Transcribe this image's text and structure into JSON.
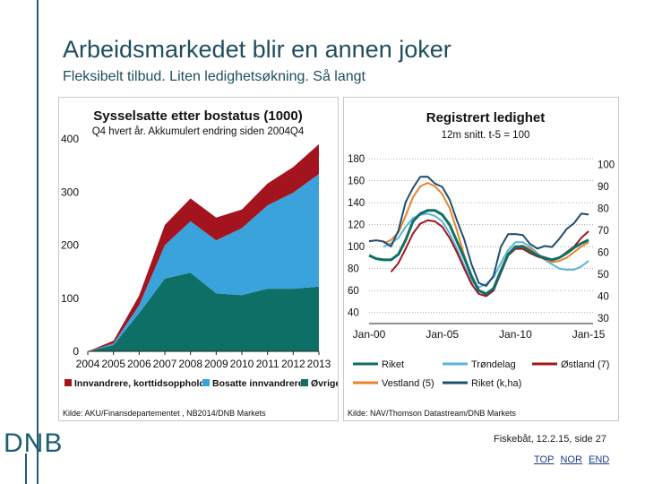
{
  "slide": {
    "title": "Arbeidsmarkedet blir en annen joker",
    "subtitle": "Fleksibelt tilbud. Liten ledighetsøkning. Så langt",
    "logo": "DNB",
    "footer": "Fiskebåt, 12.2.15, side 27",
    "nav": [
      "TOP",
      "NOR",
      "END"
    ]
  },
  "colors": {
    "accent": "#1f5e6e",
    "innvandrere": "#a3141e",
    "bosatte": "#3aa3dc",
    "ovrige": "#0e6f66",
    "riket": "#0e6f66",
    "trondelag": "#5ab4d8",
    "ostland": "#a3141e",
    "vestland": "#e8832a",
    "riket_kha": "#1f4e6e"
  },
  "chart_data": [
    {
      "type": "area",
      "title": "Sysselsatte  etter bostatus (1000)",
      "subtitle": "Q4 hvert år. Akkumulert endring siden 2004Q4",
      "source": "Kilde: AKU/Finansdepartementet ,  NB2014/DNB Markets",
      "stacked": true,
      "x": [
        "2004",
        "2005",
        "2006",
        "2007",
        "2008",
        "2009",
        "2010",
        "2011",
        "2012",
        "2013"
      ],
      "xlabels": [
        "2004",
        "2005",
        "2006",
        "2007",
        "2008",
        "2009",
        "2010",
        "2011",
        "2012",
        "2013"
      ],
      "ylim": [
        0,
        400
      ],
      "yticks": [
        "0",
        "100",
        "200",
        "300",
        "400"
      ],
      "grid": false,
      "legend_position": "bottom",
      "series": [
        {
          "name": "Øvrige",
          "color_key": "ovrige",
          "values": [
            0,
            12,
            72,
            137,
            148,
            109,
            106,
            118,
            118,
            122
          ]
        },
        {
          "name": "Bosatte innvandrere",
          "color_key": "bosatte",
          "values": [
            0,
            3,
            15,
            63,
            97,
            100,
            126,
            157,
            181,
            212
          ]
        },
        {
          "name": "Innvandrere, korttidsopphold",
          "color_key": "innvandrere",
          "values": [
            0,
            5,
            18,
            38,
            43,
            43,
            35,
            41,
            48,
            56
          ]
        }
      ],
      "legend": [
        "Innvandrere, korttidsopphold",
        "Bosatte innvandrere",
        "Øvrige"
      ]
    },
    {
      "type": "line",
      "title": "Registrert ledighet",
      "subtitle": "12m snitt. t-5 = 100",
      "source": "Kilde: NAV/Thomson Datastream/DNB Markets",
      "xlabels": [
        "Jan-00",
        "Jan-05",
        "Jan-10",
        "Jan-15"
      ],
      "xlim": [
        2000,
        2015.3
      ],
      "y_left": {
        "ylim": [
          30,
          185
        ],
        "ticks": [
          "40",
          "60",
          "80",
          "100",
          "120",
          "140",
          "160",
          "180"
        ]
      },
      "y_right": {
        "ylim": [
          27.5,
          105
        ],
        "ticks": [
          "30",
          "40",
          "50",
          "60",
          "70",
          "80",
          "90",
          "100"
        ]
      },
      "grid": true,
      "legend_position": "bottom",
      "series": [
        {
          "name": "Riket",
          "color_key": "riket",
          "axis": "left",
          "width": 3,
          "x": [
            2000,
            2000.5,
            2001,
            2001.5,
            2002,
            2002.5,
            2003,
            2003.5,
            2004,
            2004.5,
            2005,
            2005.5,
            2006,
            2006.5,
            2007,
            2007.5,
            2008,
            2008.5,
            2009,
            2009.5,
            2010,
            2010.5,
            2011,
            2011.5,
            2012,
            2012.5,
            2013,
            2013.5,
            2014,
            2014.5,
            2015
          ],
          "y": [
            92,
            89,
            88,
            88,
            93,
            106,
            123,
            130,
            133,
            133,
            129,
            120,
            105,
            90,
            73,
            60,
            57,
            62,
            78,
            93,
            100,
            100,
            96,
            92,
            90,
            88,
            90,
            94,
            99,
            103,
            106
          ]
        },
        {
          "name": "Vestland (5)",
          "color_key": "vestland",
          "axis": "left",
          "width": 2,
          "x": [
            2001,
            2001.5,
            2002,
            2002.5,
            2003,
            2003.5,
            2004,
            2004.5,
            2005,
            2005.5,
            2006,
            2006.5,
            2007,
            2007.5,
            2008,
            2008.5,
            2009,
            2009.5,
            2010,
            2010.5,
            2011,
            2011.5,
            2012,
            2012.5,
            2013,
            2013.5,
            2014,
            2014.5,
            2015
          ],
          "y": [
            103,
            106,
            113,
            128,
            145,
            155,
            158,
            155,
            148,
            135,
            115,
            92,
            72,
            60,
            56,
            60,
            78,
            93,
            100,
            101,
            98,
            93,
            89,
            86,
            87,
            90,
            95,
            100,
            104
          ]
        },
        {
          "name": "Trøndelag",
          "color_key": "trondelag",
          "axis": "left",
          "width": 2,
          "x": [
            2001,
            2001.5,
            2002,
            2002.5,
            2003,
            2003.5,
            2004,
            2004.5,
            2005,
            2005.5,
            2006,
            2006.5,
            2007,
            2007.5,
            2008,
            2008.5,
            2009,
            2009.5,
            2010,
            2010.5,
            2011,
            2011.5,
            2012,
            2012.5,
            2013,
            2013.5,
            2014,
            2014.5,
            2015
          ],
          "y": [
            100,
            103,
            108,
            118,
            126,
            129,
            130,
            128,
            123,
            112,
            98,
            83,
            68,
            63,
            66,
            72,
            85,
            97,
            104,
            104,
            100,
            94,
            88,
            84,
            80,
            79,
            79,
            82,
            87
          ]
        },
        {
          "name": "Østland (7)",
          "color_key": "ostland",
          "axis": "left",
          "width": 2,
          "x": [
            2001.5,
            2002,
            2002.5,
            2003,
            2003.5,
            2004,
            2004.5,
            2005,
            2005.5,
            2006,
            2006.5,
            2007,
            2007.5,
            2008,
            2008.5,
            2009,
            2009.5,
            2010,
            2010.5,
            2011,
            2011.5,
            2012,
            2012.5,
            2013,
            2013.5,
            2014,
            2014.5,
            2015
          ],
          "y": [
            77,
            85,
            98,
            112,
            121,
            124,
            123,
            118,
            108,
            95,
            80,
            66,
            57,
            55,
            60,
            76,
            92,
            98,
            98,
            94,
            91,
            89,
            88,
            90,
            95,
            100,
            108,
            114
          ]
        },
        {
          "name": "Riket (k,ha)",
          "color_key": "riket_kha",
          "axis": "right",
          "width": 2,
          "x": [
            2000,
            2000.5,
            2001,
            2001.5,
            2002,
            2002.5,
            2003,
            2003.5,
            2004,
            2004.5,
            2005,
            2005.5,
            2006,
            2006.5,
            2007,
            2007.5,
            2008,
            2008.5,
            2009,
            2009.5,
            2010,
            2010.5,
            2011,
            2011.5,
            2012,
            2012.5,
            2013,
            2013.5,
            2014,
            2014.5,
            2015
          ],
          "y": [
            65,
            66,
            64,
            63,
            70,
            82,
            90,
            94,
            94,
            92,
            89,
            84,
            75,
            65,
            55,
            46,
            44,
            50,
            62,
            68,
            69,
            67,
            64,
            62,
            62,
            63,
            66,
            70,
            74,
            77,
            77
          ]
        }
      ],
      "legend": [
        "Riket",
        "Trøndelag",
        "Østland (7)",
        "Vestland (5)",
        "Riket (k,ha)"
      ]
    }
  ]
}
